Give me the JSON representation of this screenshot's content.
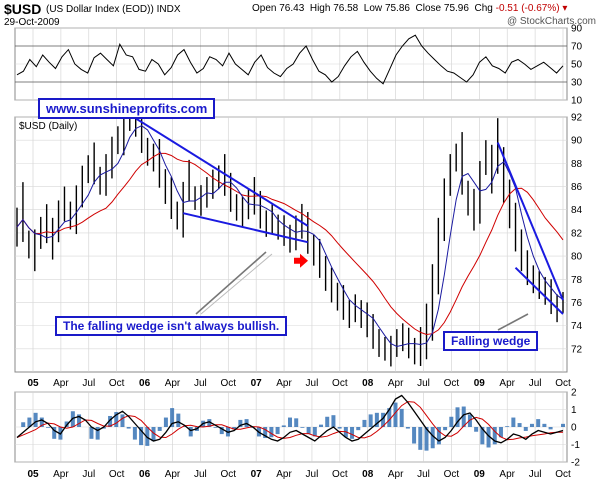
{
  "header": {
    "symbol": "$USD",
    "name": "(US Dollar Index (EOD))",
    "exchange": "INDX",
    "date": "29-Oct-2009",
    "open_label": "Open",
    "open": "76.43",
    "high_label": "High",
    "high": "76.58",
    "low_label": "Low",
    "low": "75.86",
    "close_label": "Close",
    "close": "75.96",
    "chg_label": "Chg",
    "chg": "-0.51 (-0.67%)",
    "brand": "@ StockCharts.com"
  },
  "annotations": {
    "site": "www.sunshineprofits.com",
    "note1": "The falling wedge isn't always bullish.",
    "note2": "Falling wedge"
  },
  "colors": {
    "price": "#000000",
    "ma_short": "#1a1aa0",
    "ma_long": "#d00000",
    "trendline": "#1a1ae0",
    "arrow": "#ff0000",
    "macd_line": "#000000",
    "macd_signal": "#d00000",
    "histogram": "#2a6ab0"
  },
  "chart_data": [
    {
      "type": "line",
      "role": "rsi",
      "ylim": [
        10,
        90
      ],
      "ticks": [
        10,
        30,
        50,
        70,
        90
      ],
      "reference_lines": [
        30,
        70
      ],
      "values": [
        38,
        42,
        55,
        47,
        60,
        52,
        45,
        58,
        66,
        50,
        44,
        40,
        57,
        62,
        55,
        48,
        72,
        60,
        58,
        44,
        42,
        55,
        50,
        38,
        46,
        60,
        66,
        52,
        40,
        45,
        58,
        55,
        48,
        62,
        50,
        44,
        38,
        52,
        60,
        46,
        40,
        36,
        45,
        50,
        62,
        70,
        55,
        42,
        38,
        30,
        36,
        48,
        58,
        64,
        52,
        42,
        34,
        28,
        44,
        60,
        70,
        78,
        82,
        70,
        62,
        55,
        48,
        42,
        40,
        35,
        30,
        38,
        52,
        58,
        48,
        45,
        40,
        52,
        55,
        50,
        44,
        48,
        52,
        46,
        40,
        48
      ]
    },
    {
      "type": "line",
      "role": "price",
      "title": "$USD (Daily)",
      "ylim": [
        70,
        92
      ],
      "ticks": [
        72,
        74,
        76,
        78,
        80,
        82,
        84,
        86,
        88,
        90,
        92
      ],
      "x_labels": [
        "05",
        "Apr",
        "Jul",
        "Oct",
        "06",
        "Apr",
        "Jul",
        "Oct",
        "07",
        "Apr",
        "Jul",
        "Oct",
        "08",
        "Apr",
        "Jul",
        "Oct",
        "09",
        "Apr",
        "Jul",
        "Oct"
      ],
      "series": [
        {
          "values": [
            82.5,
            83.8,
            81.0,
            80.5,
            82.0,
            82.8,
            81.5,
            83.0,
            84.5,
            83.5,
            84.0,
            86.0,
            87.5,
            88.0,
            86.5,
            87.0,
            88.5,
            90.0,
            90.5,
            92.0,
            91.5,
            91.0,
            89.0,
            88.5,
            88.0,
            86.0,
            85.0,
            83.5,
            84.0,
            86.5,
            85.0,
            84.8,
            85.5,
            86.2,
            86.8,
            87.0,
            85.5,
            84.2,
            83.8,
            84.5,
            85.2,
            84.0,
            82.8,
            83.2,
            82.5,
            82.2,
            81.5,
            82.0,
            83.0,
            82.0,
            80.5,
            79.8,
            78.5,
            77.5,
            76.5,
            76.0,
            75.0,
            75.5,
            75.0,
            74.5,
            73.5,
            72.5,
            72.0,
            71.8,
            72.5,
            73.0,
            72.5,
            71.8,
            72.2,
            73.5,
            76.0,
            80.0,
            84.0,
            87.0,
            88.5,
            88.0,
            85.0,
            84.0,
            85.5,
            88.5,
            87.5,
            89.5,
            87.0,
            84.5,
            82.5,
            80.5,
            79.0,
            78.0,
            77.5,
            77.0,
            76.5,
            75.5,
            76.0
          ]
        }
      ]
    },
    {
      "type": "line",
      "role": "macd",
      "ylim": [
        -2,
        2
      ],
      "ticks": [
        -2,
        -1,
        0,
        1,
        2
      ],
      "x_labels": [
        "05",
        "Apr",
        "Jul",
        "Oct",
        "06",
        "Apr",
        "Jul",
        "Oct",
        "07",
        "Apr",
        "Jul",
        "Oct",
        "08",
        "Apr",
        "Jul",
        "Oct",
        "09",
        "Apr",
        "Jul",
        "Oct"
      ],
      "values": [
        -0.6,
        -0.3,
        0.0,
        0.3,
        0.4,
        0.2,
        -0.2,
        -0.4,
        0.1,
        0.5,
        0.6,
        0.4,
        0.0,
        -0.2,
        0.0,
        0.4,
        0.7,
        0.9,
        0.6,
        0.2,
        -0.2,
        -0.6,
        -0.8,
        -0.7,
        -0.3,
        0.2,
        0.3,
        0.1,
        -0.2,
        -0.1,
        0.2,
        0.3,
        0.1,
        -0.1,
        -0.3,
        -0.2,
        0.1,
        0.2,
        0.0,
        -0.3,
        -0.5,
        -0.7,
        -0.8,
        -0.6,
        -0.3,
        -0.2,
        -0.4,
        -0.6,
        -0.8,
        -0.5,
        -0.2,
        0.0,
        -0.3,
        -0.6,
        -0.8,
        -0.7,
        -0.4,
        -0.1,
        0.2,
        0.5,
        1.0,
        1.6,
        1.8,
        1.4,
        0.9,
        0.4,
        -0.1,
        -0.5,
        -0.8,
        -0.6,
        -0.2,
        0.3,
        0.7,
        0.8,
        0.4,
        -0.1,
        -0.5,
        -0.8,
        -0.9,
        -0.7,
        -0.4,
        -0.5,
        -0.7,
        -0.4,
        -0.2,
        -0.3,
        -0.4,
        -0.3,
        -0.2
      ]
    }
  ]
}
